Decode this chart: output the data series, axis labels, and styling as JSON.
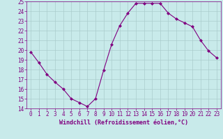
{
  "x": [
    0,
    1,
    2,
    3,
    4,
    5,
    6,
    7,
    8,
    9,
    10,
    11,
    12,
    13,
    14,
    15,
    16,
    17,
    18,
    19,
    20,
    21,
    22,
    23
  ],
  "y": [
    19.8,
    18.7,
    17.5,
    16.7,
    16.0,
    15.0,
    14.6,
    14.2,
    15.0,
    17.9,
    20.6,
    22.5,
    23.8,
    24.8,
    24.8,
    24.8,
    24.8,
    23.8,
    23.2,
    22.8,
    22.4,
    21.0,
    19.9,
    19.2
  ],
  "line_color": "#800080",
  "marker": "D",
  "marker_size": 2,
  "bg_color": "#c8eaea",
  "grid_color": "#aacccc",
  "xlabel": "Windchill (Refroidissement éolien,°C)",
  "xlabel_color": "#800080",
  "tick_color": "#800080",
  "spine_color": "#800080",
  "ylim": [
    14,
    25
  ],
  "xlim": [
    -0.5,
    23.5
  ],
  "yticks": [
    14,
    15,
    16,
    17,
    18,
    19,
    20,
    21,
    22,
    23,
    24,
    25
  ],
  "xticks": [
    0,
    1,
    2,
    3,
    4,
    5,
    6,
    7,
    8,
    9,
    10,
    11,
    12,
    13,
    14,
    15,
    16,
    17,
    18,
    19,
    20,
    21,
    22,
    23
  ],
  "tick_fontsize": 5.5,
  "xlabel_fontsize": 6.0
}
